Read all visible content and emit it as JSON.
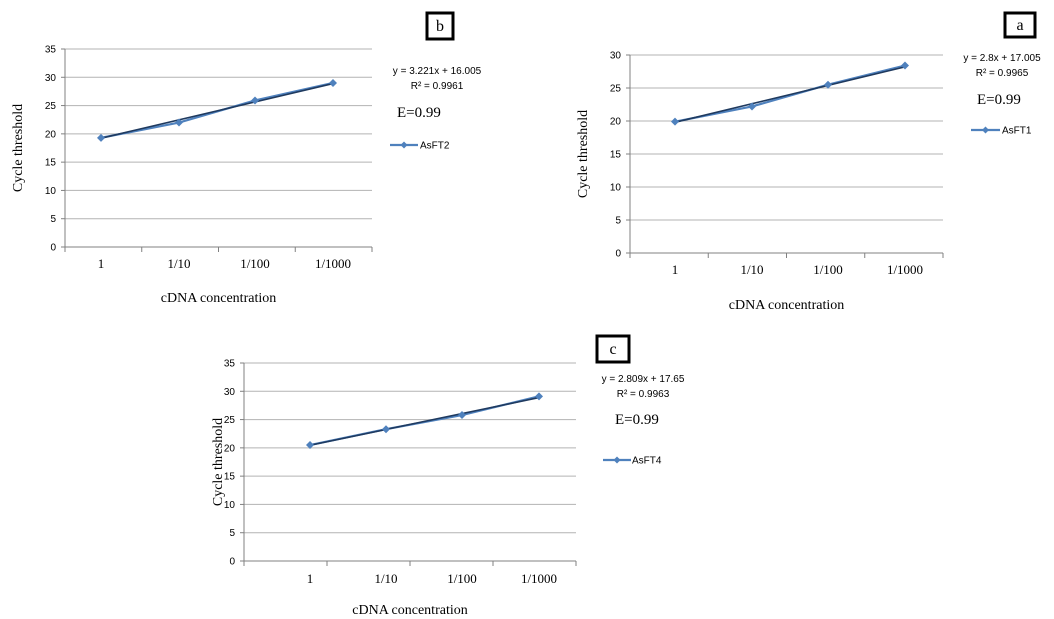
{
  "chart_data": [
    {
      "type": "line",
      "panel_label": "b",
      "categories": [
        "1",
        "1/10",
        "1/100",
        "1/1000"
      ],
      "series": [
        {
          "name": "AsFT2",
          "values": [
            19.3,
            22.0,
            25.9,
            29.0
          ]
        }
      ],
      "trendline": {
        "values": [
          19.226,
          22.447,
          25.668,
          28.889
        ]
      },
      "equation": "y = 3.221x + 16.005",
      "r_squared": "R² = 0.9961",
      "efficiency": "E=0.99",
      "xlabel": "cDNA concentration",
      "ylabel": "Cycle threshold",
      "yticks": [
        "0",
        "5",
        "10",
        "15",
        "20",
        "25",
        "30",
        "35"
      ],
      "ylim": [
        0,
        35
      ],
      "grid": true,
      "legend": "right"
    },
    {
      "type": "line",
      "panel_label": "a",
      "categories": [
        "1",
        "1/10",
        "1/100",
        "1/1000"
      ],
      "series": [
        {
          "name": "AsFT1",
          "values": [
            19.9,
            22.2,
            25.5,
            28.4
          ]
        }
      ],
      "trendline": {
        "values": [
          19.805,
          22.605,
          25.405,
          28.205
        ]
      },
      "equation": "y = 2.8x + 17.005",
      "r_squared": "R² = 0.9965",
      "efficiency": "E=0.99",
      "xlabel": "cDNA concentration",
      "ylabel": "Cycle threshold",
      "yticks": [
        "0",
        "5",
        "10",
        "15",
        "20",
        "25",
        "30"
      ],
      "ylim": [
        0,
        30
      ],
      "grid": true,
      "legend": "right"
    },
    {
      "type": "line",
      "panel_label": "c",
      "categories": [
        "1",
        "1/10",
        "1/100",
        "1/1000"
      ],
      "series": [
        {
          "name": "AsFT4",
          "values": [
            20.5,
            23.3,
            25.8,
            29.1
          ]
        }
      ],
      "trendline": {
        "values": [
          20.459,
          23.268,
          26.077,
          28.886
        ]
      },
      "equation": "y = 2.809x + 17.65",
      "r_squared": "R² = 0.9963",
      "efficiency": "E=0.99",
      "xlabel": "cDNA concentration",
      "ylabel": "Cycle threshold",
      "yticks": [
        "0",
        "5",
        "10",
        "15",
        "20",
        "25",
        "30",
        "35"
      ],
      "ylim": [
        0,
        35
      ],
      "grid": true,
      "legend": "right"
    }
  ],
  "colors": {
    "series": "#4F81BD",
    "trendline": "#1F3A5F",
    "grid": "#B3B3B3",
    "axis": "#808080"
  }
}
